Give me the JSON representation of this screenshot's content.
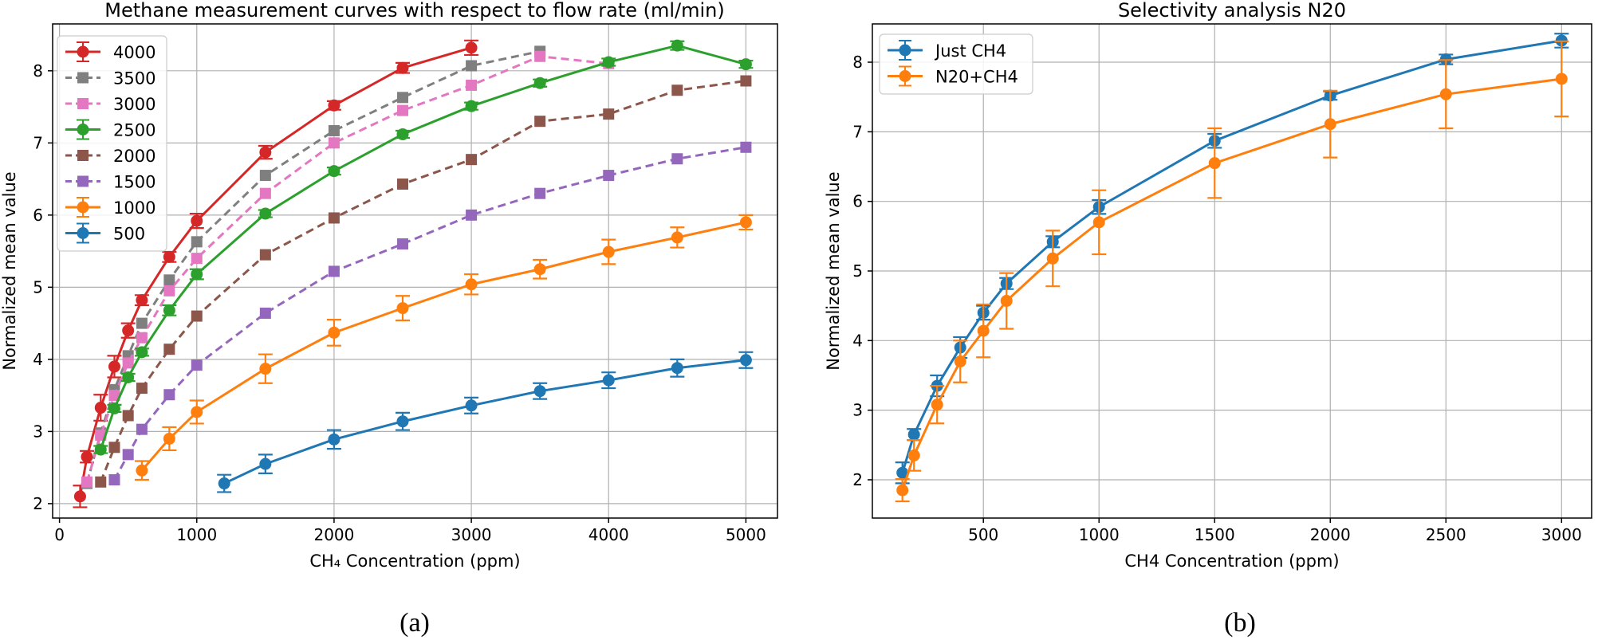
{
  "chart_data": [
    {
      "type": "line",
      "title": "Methane measurement curves with respect to flow rate (ml/min)",
      "xlabel": "CH₄ Concentration (ppm)",
      "ylabel": "Normalized mean value",
      "xlim": [
        -50,
        5230
      ],
      "ylim": [
        1.8,
        8.65
      ],
      "xticks": [
        0,
        1000,
        2000,
        3000,
        4000,
        5000
      ],
      "yticks": [
        2,
        3,
        4,
        5,
        6,
        7,
        8
      ],
      "grid": true,
      "legend_position": "upper-left",
      "caption": "(a)",
      "series": [
        {
          "name": "4000",
          "color": "#d62728",
          "linestyle": "solid",
          "marker": "circle",
          "x": [
            150,
            200,
            300,
            400,
            500,
            600,
            800,
            1000,
            1500,
            2000,
            2500,
            3000
          ],
          "y": [
            2.1,
            2.65,
            3.33,
            3.9,
            4.4,
            4.82,
            5.42,
            5.92,
            6.87,
            7.52,
            8.04,
            8.32
          ],
          "err": [
            0.15,
            0.08,
            0.18,
            0.15,
            0.1,
            0.07,
            0.07,
            0.1,
            0.09,
            0.06,
            0.07,
            0.1
          ]
        },
        {
          "name": "3500",
          "color": "#7f7f7f",
          "linestyle": "dashed",
          "marker": "square",
          "x": [
            200,
            300,
            400,
            500,
            600,
            800,
            1000,
            1500,
            2000,
            2500,
            3000,
            3500
          ],
          "y": [
            2.28,
            2.98,
            3.58,
            4.05,
            4.5,
            5.1,
            5.63,
            6.55,
            7.17,
            7.63,
            8.07,
            8.27
          ],
          "err": []
        },
        {
          "name": "3000",
          "color": "#e377c2",
          "linestyle": "dashed",
          "marker": "square",
          "x": [
            200,
            300,
            400,
            500,
            600,
            800,
            1000,
            1500,
            2000,
            2500,
            3000,
            3500,
            4000
          ],
          "y": [
            2.3,
            2.95,
            3.5,
            3.95,
            4.3,
            4.95,
            5.4,
            6.3,
            7.0,
            7.45,
            7.8,
            8.2,
            8.1
          ],
          "err": []
        },
        {
          "name": "2500",
          "color": "#2ca02c",
          "linestyle": "solid",
          "marker": "circle",
          "x": [
            300,
            400,
            500,
            600,
            800,
            1000,
            1500,
            2000,
            2500,
            3000,
            3500,
            4000,
            4500,
            5000
          ],
          "y": [
            2.75,
            3.32,
            3.75,
            4.1,
            4.68,
            5.18,
            6.02,
            6.61,
            7.12,
            7.51,
            7.83,
            8.12,
            8.35,
            8.09
          ],
          "err": [
            0.05,
            0.05,
            0.05,
            0.05,
            0.07,
            0.07,
            0.05,
            0.05,
            0.05,
            0.05,
            0.05,
            0.05,
            0.06,
            0.05
          ]
        },
        {
          "name": "2000",
          "color": "#8c564b",
          "linestyle": "dashed",
          "marker": "square",
          "x": [
            300,
            400,
            500,
            600,
            800,
            1000,
            1500,
            2000,
            2500,
            3000,
            3500,
            4000,
            4500,
            5000
          ],
          "y": [
            2.3,
            2.78,
            3.22,
            3.6,
            4.14,
            4.6,
            5.45,
            5.96,
            6.43,
            6.77,
            7.3,
            7.4,
            7.73,
            7.86
          ],
          "err": []
        },
        {
          "name": "1500",
          "color": "#9467bd",
          "linestyle": "dashed",
          "marker": "square",
          "x": [
            400,
            500,
            600,
            800,
            1000,
            1500,
            2000,
            2500,
            3000,
            3500,
            4000,
            4500,
            5000
          ],
          "y": [
            2.33,
            2.68,
            3.03,
            3.51,
            3.92,
            4.64,
            5.22,
            5.6,
            6.0,
            6.3,
            6.55,
            6.78,
            6.94
          ],
          "err": []
        },
        {
          "name": "1000",
          "color": "#ff7f0e",
          "linestyle": "solid",
          "marker": "circle",
          "x": [
            600,
            800,
            1000,
            1500,
            2000,
            2500,
            3000,
            3500,
            4000,
            4500,
            5000
          ],
          "y": [
            2.46,
            2.9,
            3.27,
            3.87,
            4.37,
            4.71,
            5.04,
            5.25,
            5.49,
            5.69,
            5.9
          ],
          "err": [
            0.13,
            0.16,
            0.16,
            0.2,
            0.18,
            0.17,
            0.14,
            0.13,
            0.17,
            0.14,
            0.1
          ]
        },
        {
          "name": "500",
          "color": "#1f77b4",
          "linestyle": "solid",
          "marker": "circle",
          "x": [
            1200,
            1500,
            2000,
            2500,
            3000,
            3500,
            4000,
            4500,
            5000
          ],
          "y": [
            2.28,
            2.55,
            2.89,
            3.14,
            3.36,
            3.56,
            3.71,
            3.88,
            3.99
          ],
          "err": [
            0.12,
            0.13,
            0.13,
            0.12,
            0.11,
            0.11,
            0.11,
            0.12,
            0.11
          ]
        }
      ]
    },
    {
      "type": "line",
      "title": "Selectivity analysis N20",
      "xlabel": "CH4 Concentration (ppm)",
      "ylabel": "Normalized mean value",
      "xlim": [
        20,
        3130
      ],
      "ylim": [
        1.45,
        8.55
      ],
      "xticks": [
        500,
        1000,
        1500,
        2000,
        2500,
        3000
      ],
      "yticks": [
        2,
        3,
        4,
        5,
        6,
        7,
        8
      ],
      "grid": true,
      "legend_position": "upper-left",
      "caption": "(b)",
      "series": [
        {
          "name": "Just CH4",
          "color": "#1f77b4",
          "linestyle": "solid",
          "marker": "circle",
          "x": [
            150,
            200,
            300,
            400,
            500,
            600,
            800,
            1000,
            1500,
            2000,
            2500,
            3000
          ],
          "y": [
            2.1,
            2.65,
            3.35,
            3.9,
            4.4,
            4.82,
            5.42,
            5.92,
            6.87,
            7.52,
            8.04,
            8.31
          ],
          "err": [
            0.15,
            0.08,
            0.15,
            0.15,
            0.1,
            0.08,
            0.08,
            0.1,
            0.1,
            0.06,
            0.07,
            0.1
          ]
        },
        {
          "name": "N20+CH4",
          "color": "#ff7f0e",
          "linestyle": "solid",
          "marker": "circle",
          "x": [
            150,
            200,
            300,
            400,
            500,
            600,
            800,
            1000,
            1500,
            2000,
            2500,
            3000
          ],
          "y": [
            1.85,
            2.35,
            3.08,
            3.7,
            4.14,
            4.57,
            5.18,
            5.7,
            6.55,
            7.11,
            7.54,
            7.76
          ],
          "err": [
            0.16,
            0.22,
            0.27,
            0.3,
            0.38,
            0.4,
            0.4,
            0.46,
            0.5,
            0.48,
            0.49,
            0.54
          ]
        }
      ]
    }
  ]
}
